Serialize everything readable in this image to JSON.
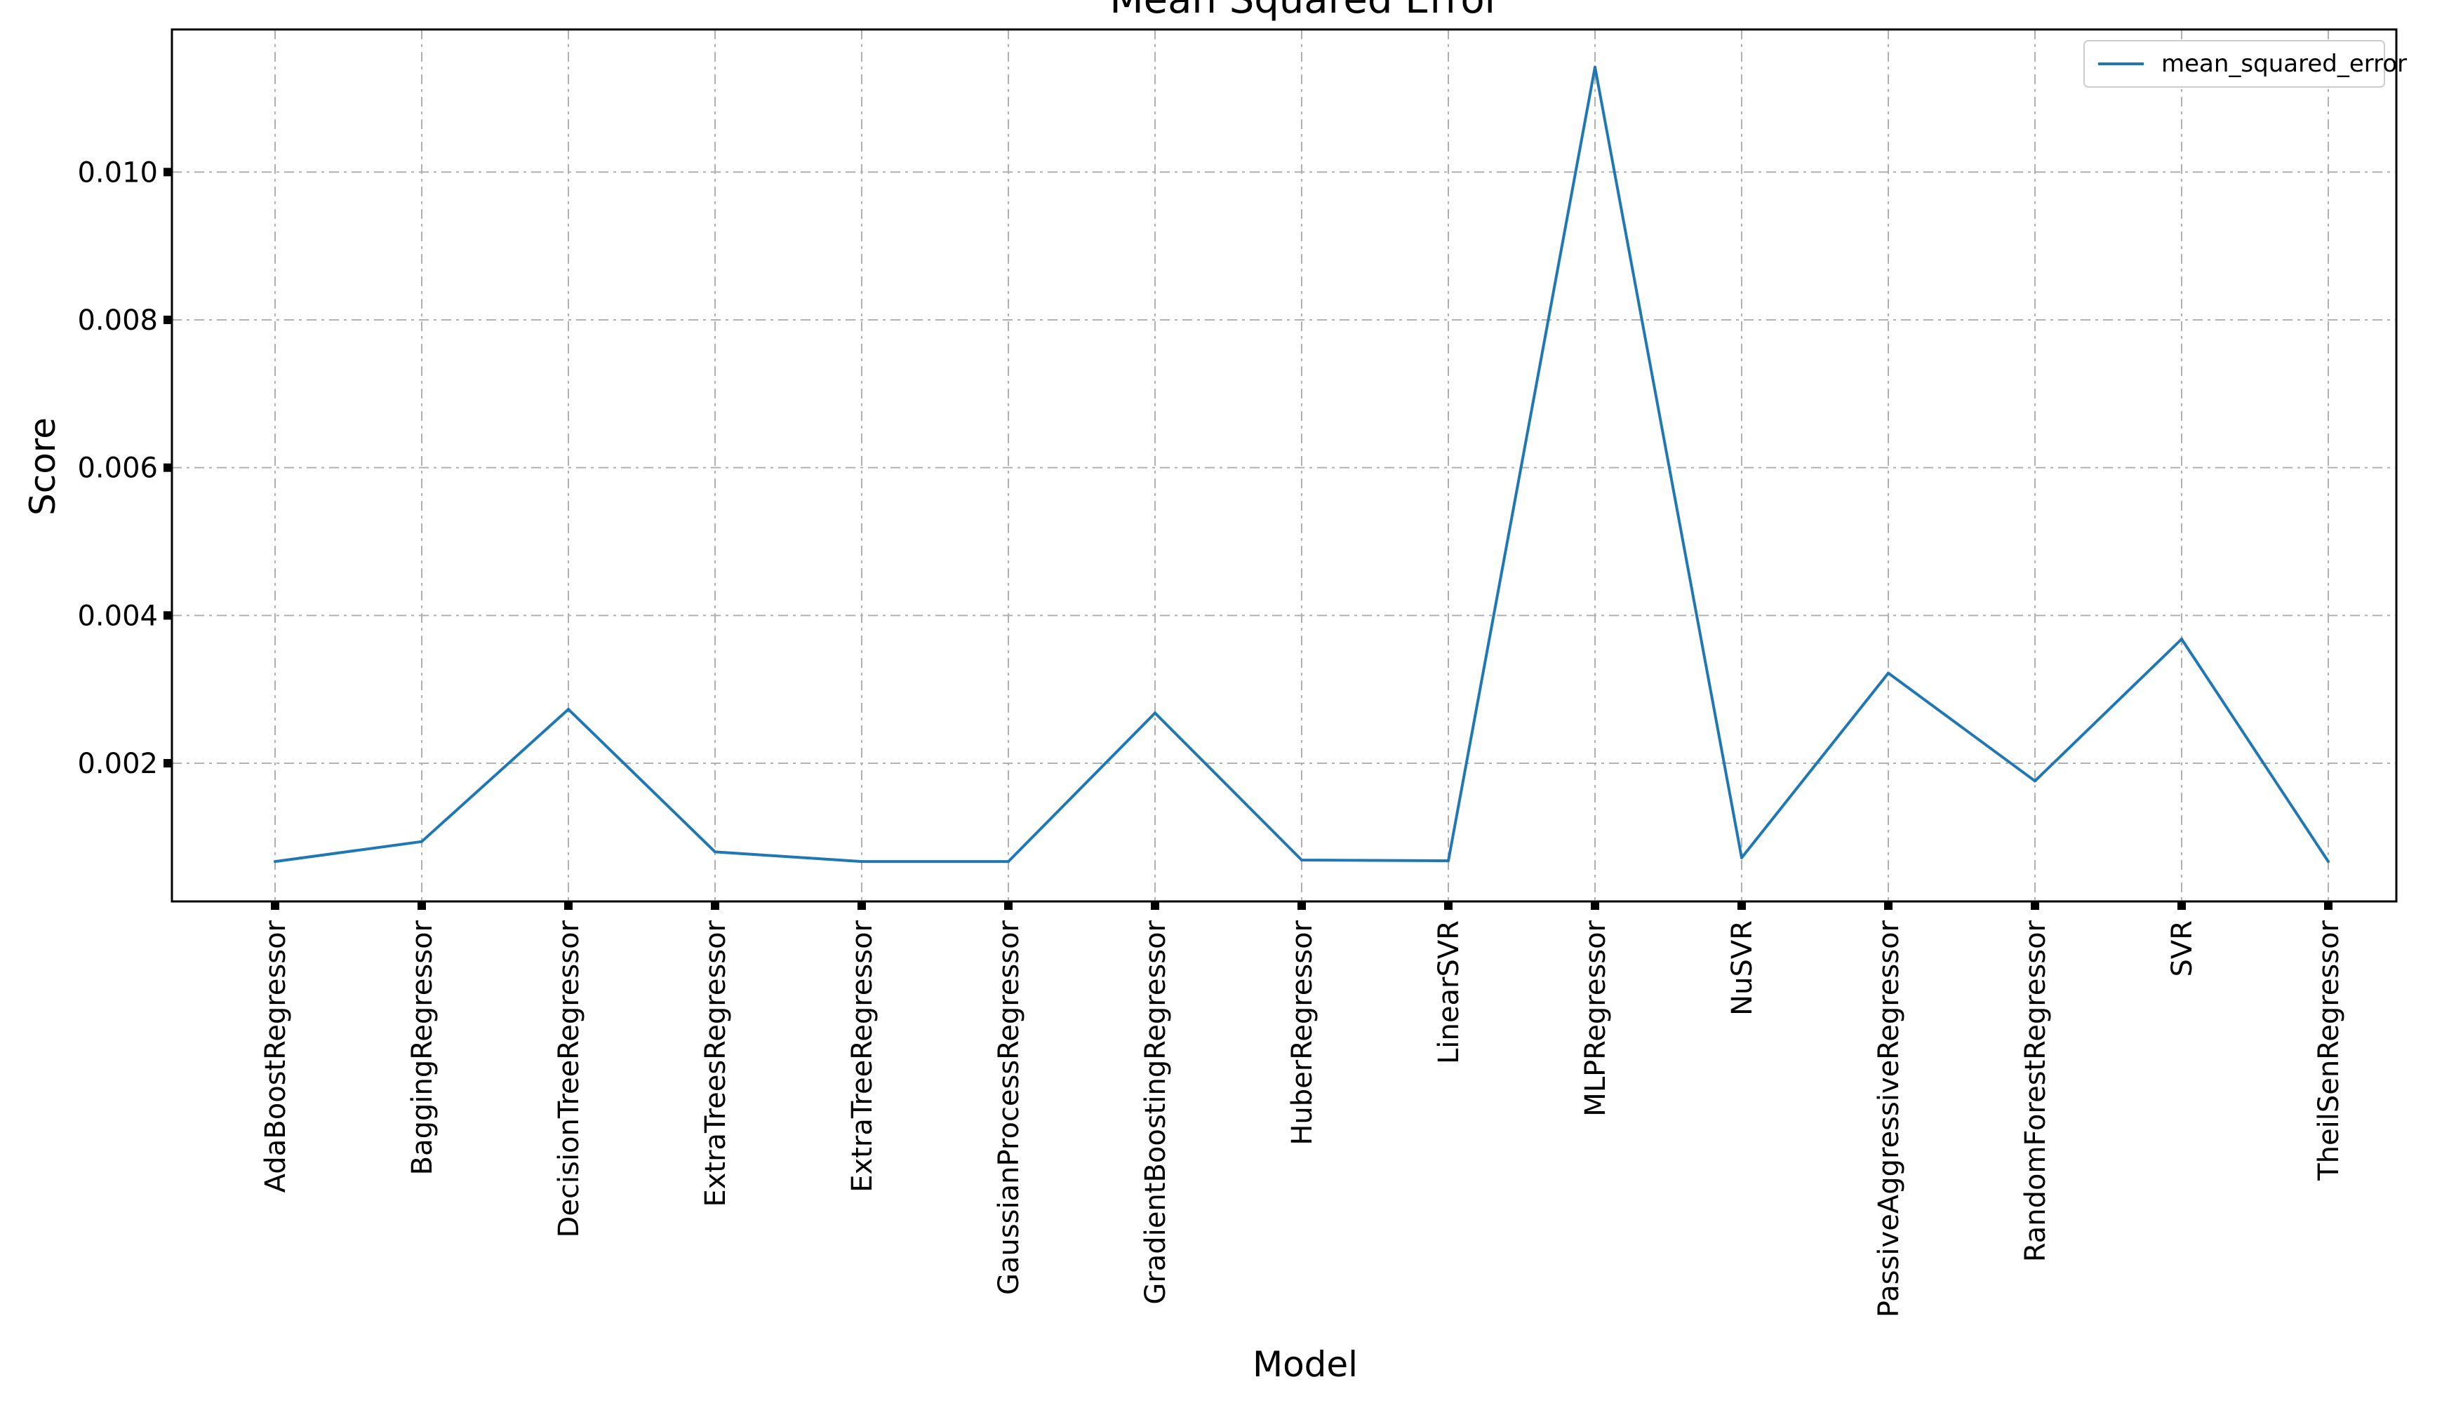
{
  "chart_data": {
    "type": "line",
    "title": "Mean Squared Error",
    "xlabel": "Model",
    "ylabel": "Score",
    "categories": [
      "AdaBoostRegressor",
      "BaggingRegressor",
      "DecisionTreeRegressor",
      "ExtraTreesRegressor",
      "ExtraTreeRegressor",
      "GaussianProcessRegressor",
      "GradientBoostingRegressor",
      "HuberRegressor",
      "LinearSVR",
      "MLPRegressor",
      "NuSVR",
      "PassiveAggressiveRegressor",
      "RandomForestRegressor",
      "SVR",
      "TheilSenRegressor"
    ],
    "series": [
      {
        "name": "mean_squared_error",
        "color": "#1f77b4",
        "values": [
          0.00067,
          0.00094,
          0.00273,
          0.0008,
          0.00067,
          0.00067,
          0.00268,
          0.00069,
          0.00068,
          0.01142,
          0.00072,
          0.00322,
          0.00176,
          0.00368,
          0.00067
        ]
      }
    ],
    "ylim": [
      0.00013,
      0.01193
    ],
    "yticks": [
      "0.002",
      "0.004",
      "0.006",
      "0.008",
      "0.010"
    ],
    "ytick_values": [
      0.002,
      0.004,
      0.006,
      0.008,
      0.01
    ],
    "grid": true,
    "legend_position": "top-right"
  }
}
